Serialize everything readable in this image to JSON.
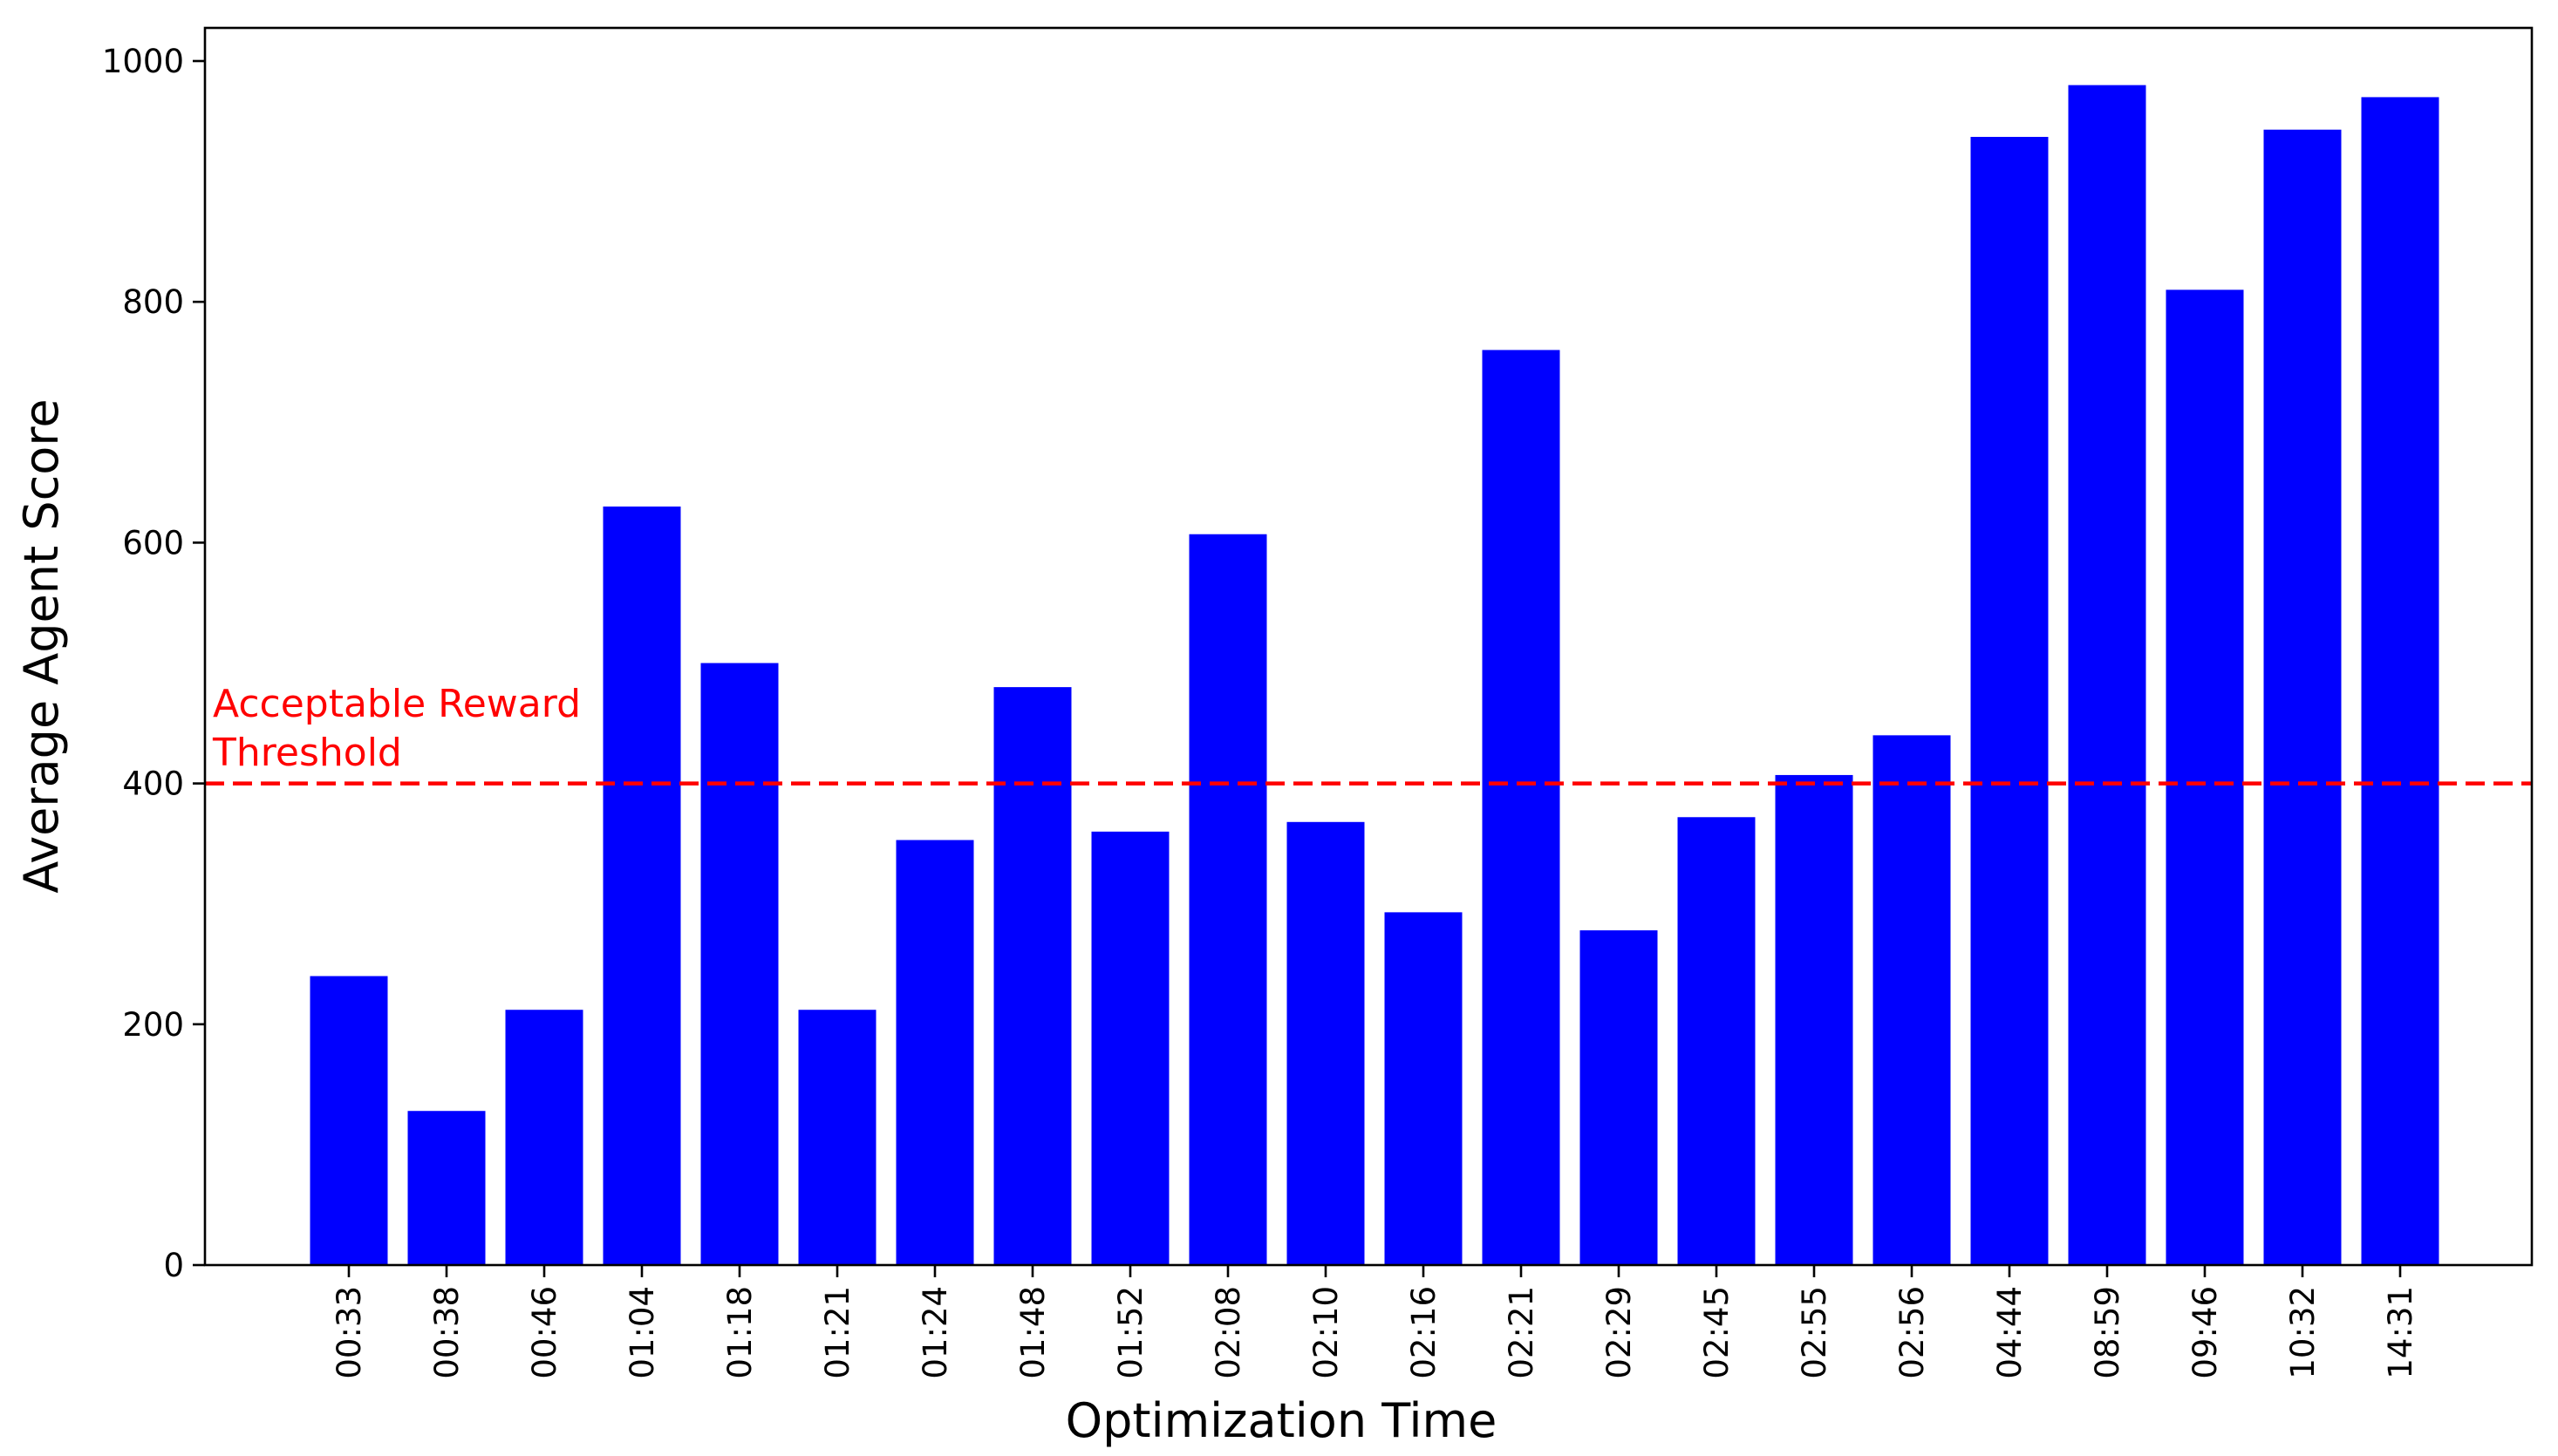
{
  "chart_data": {
    "type": "bar",
    "categories": [
      "00:33",
      "00:38",
      "00:46",
      "01:04",
      "01:18",
      "01:21",
      "01:24",
      "01:48",
      "01:52",
      "02:08",
      "02:10",
      "02:16",
      "02:21",
      "02:29",
      "02:45",
      "02:55",
      "02:56",
      "04:44",
      "08:59",
      "09:46",
      "10:32",
      "14:31"
    ],
    "values": [
      240,
      128,
      212,
      630,
      500,
      212,
      353,
      480,
      360,
      607,
      368,
      293,
      760,
      278,
      372,
      407,
      440,
      937,
      980,
      810,
      943,
      970
    ],
    "title": "",
    "xlabel": "Optimization Time",
    "ylabel": "Average Agent Score",
    "ylim": [
      0,
      1000
    ],
    "yticks": [
      0,
      200,
      400,
      600,
      800,
      1000
    ],
    "grid": false,
    "bar_color": "#0000ff",
    "threshold": {
      "value": 400,
      "label_line1": "Acceptable Reward",
      "label_line2": "Threshold",
      "color": "#ff0000",
      "style": "dashed"
    }
  }
}
